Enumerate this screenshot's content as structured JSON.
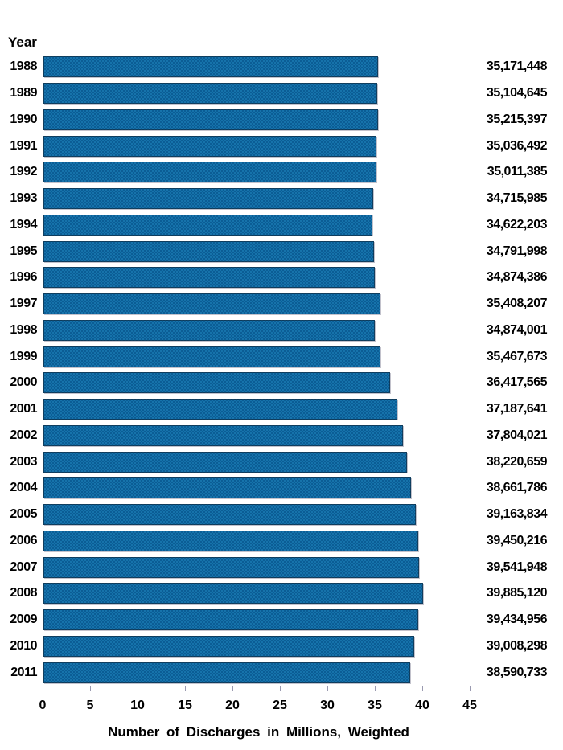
{
  "chart": {
    "y_axis_title": "Year",
    "x_axis_title": "Number of Discharges in Millions, Weighted",
    "bar_color": "#0e649c",
    "axis_color": "#9a9ab0",
    "text_color": "#000000"
  },
  "chart_data": {
    "type": "bar",
    "orientation": "horizontal",
    "title": "",
    "xlabel": "Number of Discharges in Millions, Weighted",
    "ylabel": "Year",
    "xlim": [
      0,
      45
    ],
    "x_ticks": [
      0,
      5,
      10,
      15,
      20,
      25,
      30,
      35,
      40,
      45
    ],
    "grid": false,
    "legend": false,
    "categories": [
      "1988",
      "1989",
      "1990",
      "1991",
      "1992",
      "1993",
      "1994",
      "1995",
      "1996",
      "1997",
      "1998",
      "1999",
      "2000",
      "2001",
      "2002",
      "2003",
      "2004",
      "2005",
      "2006",
      "2007",
      "2008",
      "2009",
      "2010",
      "2011"
    ],
    "values": [
      35171448,
      35104645,
      35215397,
      35036492,
      35011385,
      34715985,
      34622203,
      34791998,
      34874386,
      35408207,
      34874001,
      35467673,
      36417565,
      37187641,
      37804021,
      38220659,
      38661786,
      39163834,
      39450216,
      39541948,
      39885120,
      39434956,
      39008298,
      38590733
    ],
    "value_labels": [
      "35,171,448",
      "35,104,645",
      "35,215,397",
      "35,036,492",
      "35,011,385",
      "34,715,985",
      "34,622,203",
      "34,791,998",
      "34,874,386",
      "35,408,207",
      "34,874,001",
      "35,467,673",
      "36,417,565",
      "37,187,641",
      "37,804,021",
      "38,220,659",
      "38,661,786",
      "39,163,834",
      "39,450,216",
      "39,541,948",
      "39,885,120",
      "39,434,956",
      "39,008,298",
      "38,590,733"
    ]
  }
}
